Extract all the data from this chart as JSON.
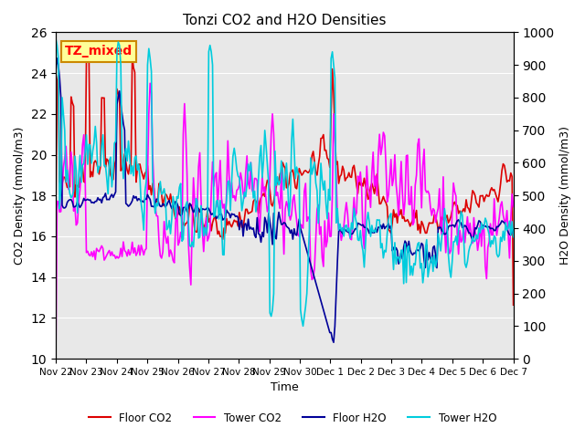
{
  "title": "Tonzi CO2 and H2O Densities",
  "xlabel": "Time",
  "ylabel_left": "CO2 Density (mmol/m3)",
  "ylabel_right": "H2O Density (mmol/m3)",
  "ylim_left": [
    10,
    26
  ],
  "ylim_right": [
    0,
    1000
  ],
  "yticks_left": [
    10,
    12,
    14,
    16,
    18,
    20,
    22,
    24,
    26
  ],
  "yticks_right": [
    0,
    100,
    200,
    300,
    400,
    500,
    600,
    700,
    800,
    900,
    1000
  ],
  "xtick_labels": [
    "Nov 22",
    "Nov 23",
    "Nov 24",
    "Nov 25",
    "Nov 26",
    "Nov 27",
    "Nov 28",
    "Nov 29",
    "Nov 30",
    "Dec 1",
    "Dec 2",
    "Dec 3",
    "Dec 4",
    "Dec 5",
    "Dec 6",
    "Dec 7"
  ],
  "annotation_text": "TZ_mixed",
  "annotation_box_color": "#FFFF99",
  "annotation_edge_color": "#CC8800",
  "colors": {
    "floor_co2": "#DD0000",
    "tower_co2": "#FF00FF",
    "floor_h2o": "#000099",
    "tower_h2o": "#00CCDD"
  },
  "legend_labels": [
    "Floor CO2",
    "Tower CO2",
    "Floor H2O",
    "Tower H2O"
  ],
  "background_color": "#E8E8E8",
  "fig_background": "#FFFFFF"
}
